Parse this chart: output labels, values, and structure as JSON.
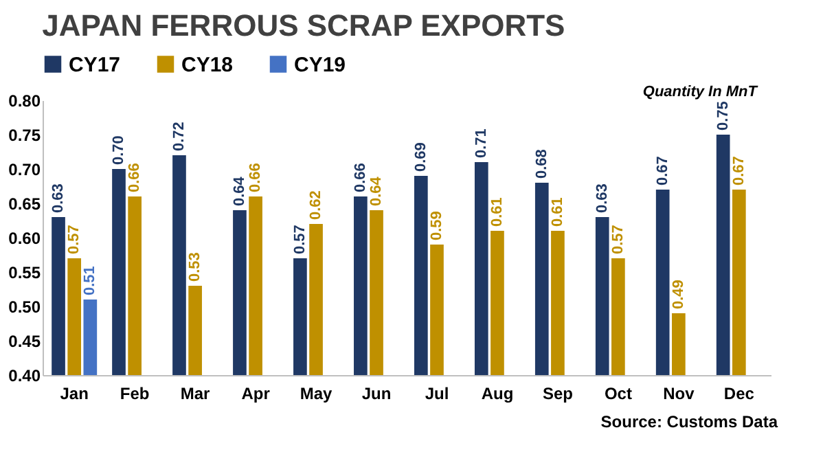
{
  "chart_data": {
    "type": "bar",
    "title": "JAPAN FERROUS SCRAP EXPORTS",
    "categories": [
      "Jan",
      "Feb",
      "Mar",
      "Apr",
      "May",
      "Jun",
      "Jul",
      "Aug",
      "Sep",
      "Oct",
      "Nov",
      "Dec"
    ],
    "series": [
      {
        "name": "CY17",
        "color": "#1f3864",
        "values": [
          0.63,
          0.7,
          0.72,
          0.64,
          0.57,
          0.66,
          0.69,
          0.71,
          0.68,
          0.63,
          0.67,
          0.75
        ],
        "value_labels": [
          "0.63",
          "0.70",
          "0.72",
          "0.64",
          "0.57",
          "0.66",
          "0.69",
          "0.71",
          "0.68",
          "0.63",
          "0.67",
          "0.75"
        ]
      },
      {
        "name": "CY18",
        "color": "#bf9000",
        "values": [
          0.57,
          0.66,
          0.53,
          0.66,
          0.62,
          0.64,
          0.59,
          0.61,
          0.61,
          0.57,
          0.49,
          0.67
        ],
        "value_labels": [
          "0.57",
          "0.66",
          "0.53",
          "0.66",
          "0.62",
          "0.64",
          "0.59",
          "0.61",
          "0.61",
          "0.57",
          "0.49",
          "0.67"
        ]
      },
      {
        "name": "CY19",
        "color": "#4472c4",
        "values": [
          0.51,
          null,
          null,
          null,
          null,
          null,
          null,
          null,
          null,
          null,
          null,
          null
        ],
        "value_labels": [
          "0.51",
          null,
          null,
          null,
          null,
          null,
          null,
          null,
          null,
          null,
          null,
          null
        ]
      }
    ],
    "ylim": [
      0.4,
      0.8
    ],
    "yticks": [
      {
        "value": 0.4,
        "label": "0.40"
      },
      {
        "value": 0.45,
        "label": "0.45"
      },
      {
        "value": 0.5,
        "label": "0.50"
      },
      {
        "value": 0.55,
        "label": "0.55"
      },
      {
        "value": 0.6,
        "label": "0.60"
      },
      {
        "value": 0.65,
        "label": "0.65"
      },
      {
        "value": 0.7,
        "label": "0.70"
      },
      {
        "value": 0.75,
        "label": "0.75"
      },
      {
        "value": 0.8,
        "label": "0.80"
      }
    ],
    "annotations": [
      "Quantity  In MnT",
      "Source: Customs Data"
    ],
    "grid": false,
    "legend": "top"
  }
}
